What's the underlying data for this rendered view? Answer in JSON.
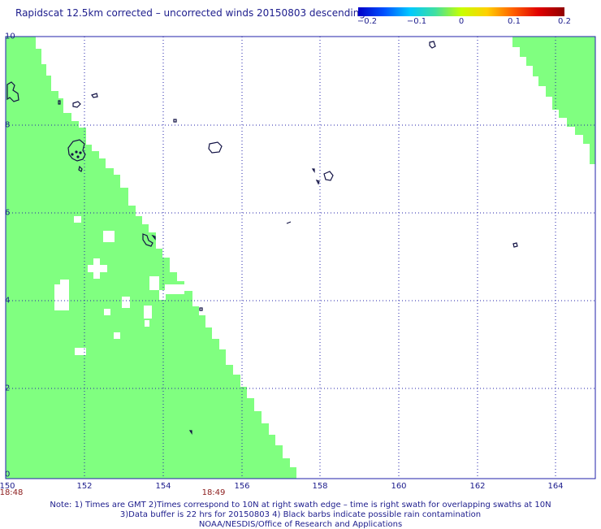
{
  "title": "Rapidscat 12.5km corrected – uncorrected winds 20150803 descending",
  "colorbar": {
    "ticks": [
      "−0.2",
      "−0.1",
      "0",
      "0.1",
      "0.2"
    ],
    "colors": [
      "#0000c8",
      "#0050ff",
      "#00c8ff",
      "#40e0a0",
      "#c8ff00",
      "#ffd000",
      "#ff6000",
      "#e00000",
      "#900000"
    ]
  },
  "colors": {
    "swath": "#80ff80",
    "grid": "#2222aa",
    "coast": "#111144",
    "text": "#1c1c8c",
    "time": "#8c1c1c"
  },
  "x_ticks": [
    "150",
    "152",
    "154",
    "156",
    "158",
    "160",
    "162",
    "164"
  ],
  "y_ticks": [
    "0",
    "2",
    "4",
    "6",
    "8",
    "10"
  ],
  "times": [
    "18:48",
    "18:49"
  ],
  "notes": [
    "Note: 1) Times are GMT 2)Times correspond to 10N at right swath edge – time is right swath for overlapping swaths at 10N",
    "3)Data buffer is 22 hrs for 20150803 4) Black barbs indicate possible rain contamination",
    "NOAA/NESDIS/Office of Research and Applications"
  ],
  "map_extent": {
    "lon": [
      150,
      165
    ],
    "lat": [
      0,
      10
    ]
  }
}
